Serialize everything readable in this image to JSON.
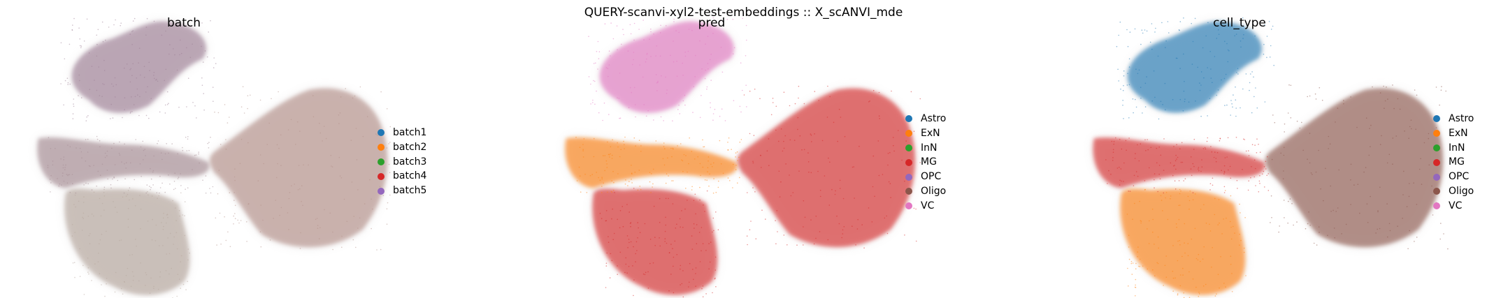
{
  "figure": {
    "suptitle": "QUERY-scanvi-xyl2-test-embeddings :: X_scANVI_mde"
  },
  "chart_data": [
    {
      "type": "scatter",
      "title": "batch",
      "xlabel": "",
      "ylabel": "",
      "grid": false,
      "legend_position": "right",
      "legend": [
        {
          "label": "batch1",
          "color": "#1f77b4"
        },
        {
          "label": "batch2",
          "color": "#ff7f0e"
        },
        {
          "label": "batch3",
          "color": "#2ca02c"
        },
        {
          "label": "batch4",
          "color": "#d62728"
        },
        {
          "label": "batch5",
          "color": "#9467bd"
        }
      ],
      "regions": [
        {
          "name": "top-left lobe",
          "x": [
            -1.5,
            -0.15
          ],
          "y": [
            0.35,
            1.35
          ],
          "dominant_color": "#9c7d94"
        },
        {
          "name": "middle-left band",
          "x": [
            -1.6,
            -0.2
          ],
          "y": [
            -0.35,
            0.2
          ],
          "dominant_color": "#a48a92"
        },
        {
          "name": "bottom-left lobe",
          "x": [
            -1.4,
            -0.4
          ],
          "y": [
            -1.4,
            -0.3
          ],
          "dominant_color": "#b5a69c"
        },
        {
          "name": "right lobe",
          "x": [
            -0.2,
            1.3
          ],
          "y": [
            -0.9,
            0.7
          ],
          "dominant_color": "#b48f88"
        }
      ]
    },
    {
      "type": "scatter",
      "title": "pred",
      "xlabel": "",
      "ylabel": "",
      "grid": false,
      "legend_position": "right",
      "legend": [
        {
          "label": "Astro",
          "color": "#1f77b4"
        },
        {
          "label": "ExN",
          "color": "#ff7f0e"
        },
        {
          "label": "InN",
          "color": "#2ca02c"
        },
        {
          "label": "MG",
          "color": "#d62728"
        },
        {
          "label": "OPC",
          "color": "#9467bd"
        },
        {
          "label": "Oligo",
          "color": "#8c564b"
        },
        {
          "label": "VC",
          "color": "#e377c2"
        }
      ],
      "regions": [
        {
          "name": "top-left lobe",
          "x": [
            -1.5,
            -0.15
          ],
          "y": [
            0.35,
            1.35
          ],
          "dominant_color": "#e377c2"
        },
        {
          "name": "middle-left band",
          "x": [
            -1.6,
            -0.2
          ],
          "y": [
            -0.35,
            0.2
          ],
          "dominant_color": "#ff7f0e"
        },
        {
          "name": "bottom-left lobe",
          "x": [
            -1.4,
            -0.4
          ],
          "y": [
            -1.4,
            -0.3
          ],
          "dominant_color": "#d62728"
        },
        {
          "name": "right lobe",
          "x": [
            -0.2,
            1.3
          ],
          "y": [
            -0.9,
            0.7
          ],
          "dominant_color": "#d62728"
        }
      ]
    },
    {
      "type": "scatter",
      "title": "cell_type",
      "xlabel": "",
      "ylabel": "",
      "grid": false,
      "legend_position": "right",
      "legend": [
        {
          "label": "Astro",
          "color": "#1f77b4"
        },
        {
          "label": "ExN",
          "color": "#ff7f0e"
        },
        {
          "label": "InN",
          "color": "#2ca02c"
        },
        {
          "label": "MG",
          "color": "#d62728"
        },
        {
          "label": "OPC",
          "color": "#9467bd"
        },
        {
          "label": "Oligo",
          "color": "#8c564b"
        },
        {
          "label": "VC",
          "color": "#e377c2"
        }
      ],
      "regions": [
        {
          "name": "top-left lobe",
          "x": [
            -1.5,
            -0.15
          ],
          "y": [
            0.35,
            1.35
          ],
          "dominant_color": "#1f77b4"
        },
        {
          "name": "middle-left band",
          "x": [
            -1.6,
            -0.2
          ],
          "y": [
            -0.35,
            0.2
          ],
          "dominant_color": "#d62728"
        },
        {
          "name": "bottom-left lobe",
          "x": [
            -1.4,
            -0.4
          ],
          "y": [
            -1.4,
            -0.3
          ],
          "dominant_color": "#ff7f0e"
        },
        {
          "name": "right lobe",
          "x": [
            -0.2,
            1.3
          ],
          "y": [
            -0.9,
            0.7
          ],
          "dominant_color": "#8c564b"
        }
      ]
    }
  ]
}
